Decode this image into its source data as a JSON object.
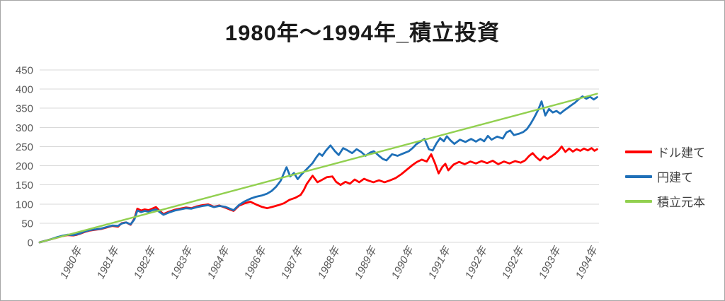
{
  "colors": {
    "background": "#ffffff",
    "border": "#a6a6a6",
    "grid": "#d9d9d9",
    "axis_text": "#595959",
    "title_text": "#1a1a1a",
    "legend_text": "#404040"
  },
  "chart_data": {
    "type": "line",
    "title": "1980年～1994年_積立投資",
    "xlabel": "",
    "ylabel": "",
    "xlim": [
      1980,
      1995
    ],
    "ylim": [
      0,
      450
    ],
    "grid": true,
    "legend_position": "right",
    "yticks": [
      0,
      50,
      100,
      150,
      200,
      250,
      300,
      350,
      400,
      450
    ],
    "xtick_labels": [
      "1980年",
      "1981年",
      "1982年",
      "1983年",
      "1984年",
      "1986年",
      "1987年",
      "1988年",
      "1989年",
      "1990年",
      "1991年",
      "1992年",
      "1992年",
      "1993年",
      "1994年"
    ],
    "series": [
      {
        "id": "usd",
        "name": "ドル建て",
        "color": "#ff0000",
        "line_width": 2.8,
        "points": [
          [
            1980.0,
            0
          ],
          [
            1980.15,
            4
          ],
          [
            1980.3,
            8
          ],
          [
            1980.45,
            12
          ],
          [
            1980.6,
            16
          ],
          [
            1980.75,
            19
          ],
          [
            1980.9,
            18
          ],
          [
            1981.0,
            20
          ],
          [
            1981.1,
            23
          ],
          [
            1981.2,
            27
          ],
          [
            1981.35,
            31
          ],
          [
            1981.5,
            33
          ],
          [
            1981.65,
            35
          ],
          [
            1981.8,
            39
          ],
          [
            1981.95,
            43
          ],
          [
            1982.1,
            41
          ],
          [
            1982.2,
            50
          ],
          [
            1982.32,
            52
          ],
          [
            1982.44,
            46
          ],
          [
            1982.54,
            62
          ],
          [
            1982.62,
            88
          ],
          [
            1982.72,
            83
          ],
          [
            1982.82,
            86
          ],
          [
            1982.92,
            84
          ],
          [
            1983.02,
            88
          ],
          [
            1983.12,
            92
          ],
          [
            1983.22,
            82
          ],
          [
            1983.32,
            74
          ],
          [
            1983.47,
            80
          ],
          [
            1983.62,
            85
          ],
          [
            1983.77,
            88
          ],
          [
            1983.92,
            91
          ],
          [
            1984.07,
            89
          ],
          [
            1984.22,
            94
          ],
          [
            1984.37,
            97
          ],
          [
            1984.52,
            99
          ],
          [
            1984.67,
            93
          ],
          [
            1984.82,
            96
          ],
          [
            1984.97,
            91
          ],
          [
            1985.1,
            86
          ],
          [
            1985.2,
            82
          ],
          [
            1985.35,
            96
          ],
          [
            1985.5,
            102
          ],
          [
            1985.65,
            106
          ],
          [
            1985.8,
            99
          ],
          [
            1985.95,
            93
          ],
          [
            1986.1,
            89
          ],
          [
            1986.25,
            93
          ],
          [
            1986.4,
            97
          ],
          [
            1986.55,
            102
          ],
          [
            1986.7,
            111
          ],
          [
            1986.85,
            116
          ],
          [
            1987.0,
            124
          ],
          [
            1987.08,
            136
          ],
          [
            1987.16,
            152
          ],
          [
            1987.24,
            163
          ],
          [
            1987.32,
            174
          ],
          [
            1987.45,
            157
          ],
          [
            1987.55,
            162
          ],
          [
            1987.7,
            170
          ],
          [
            1987.85,
            172
          ],
          [
            1987.95,
            158
          ],
          [
            1988.07,
            150
          ],
          [
            1988.2,
            158
          ],
          [
            1988.32,
            153
          ],
          [
            1988.45,
            164
          ],
          [
            1988.57,
            157
          ],
          [
            1988.7,
            166
          ],
          [
            1988.82,
            161
          ],
          [
            1988.95,
            157
          ],
          [
            1989.1,
            162
          ],
          [
            1989.25,
            157
          ],
          [
            1989.4,
            162
          ],
          [
            1989.55,
            168
          ],
          [
            1989.7,
            178
          ],
          [
            1989.85,
            190
          ],
          [
            1990.0,
            202
          ],
          [
            1990.12,
            210
          ],
          [
            1990.25,
            216
          ],
          [
            1990.38,
            211
          ],
          [
            1990.5,
            230
          ],
          [
            1990.6,
            207
          ],
          [
            1990.7,
            180
          ],
          [
            1990.8,
            197
          ],
          [
            1990.88,
            205
          ],
          [
            1990.96,
            188
          ],
          [
            1991.1,
            203
          ],
          [
            1991.25,
            210
          ],
          [
            1991.4,
            204
          ],
          [
            1991.55,
            211
          ],
          [
            1991.7,
            206
          ],
          [
            1991.85,
            212
          ],
          [
            1992.0,
            207
          ],
          [
            1992.15,
            213
          ],
          [
            1992.3,
            204
          ],
          [
            1992.45,
            211
          ],
          [
            1992.6,
            206
          ],
          [
            1992.75,
            212
          ],
          [
            1992.9,
            208
          ],
          [
            1993.02,
            214
          ],
          [
            1993.12,
            225
          ],
          [
            1993.22,
            233
          ],
          [
            1993.32,
            222
          ],
          [
            1993.42,
            214
          ],
          [
            1993.52,
            224
          ],
          [
            1993.62,
            218
          ],
          [
            1993.72,
            224
          ],
          [
            1993.82,
            231
          ],
          [
            1993.92,
            240
          ],
          [
            1994.0,
            250
          ],
          [
            1994.1,
            236
          ],
          [
            1994.2,
            245
          ],
          [
            1994.3,
            237
          ],
          [
            1994.4,
            243
          ],
          [
            1994.5,
            239
          ],
          [
            1994.6,
            245
          ],
          [
            1994.7,
            240
          ],
          [
            1994.8,
            246
          ],
          [
            1994.88,
            239
          ],
          [
            1994.95,
            243
          ]
        ]
      },
      {
        "id": "jpy",
        "name": "円建て",
        "color": "#1f70b8",
        "line_width": 2.8,
        "points": [
          [
            1980.0,
            0
          ],
          [
            1980.15,
            4
          ],
          [
            1980.3,
            8
          ],
          [
            1980.45,
            13
          ],
          [
            1980.6,
            17
          ],
          [
            1980.75,
            20
          ],
          [
            1980.9,
            19
          ],
          [
            1981.0,
            21
          ],
          [
            1981.1,
            24
          ],
          [
            1981.2,
            28
          ],
          [
            1981.35,
            32
          ],
          [
            1981.5,
            34
          ],
          [
            1981.65,
            36
          ],
          [
            1981.8,
            40
          ],
          [
            1981.95,
            44
          ],
          [
            1982.1,
            43
          ],
          [
            1982.2,
            49
          ],
          [
            1982.32,
            52
          ],
          [
            1982.44,
            47
          ],
          [
            1982.54,
            60
          ],
          [
            1982.62,
            83
          ],
          [
            1982.72,
            79
          ],
          [
            1982.82,
            82
          ],
          [
            1982.92,
            80
          ],
          [
            1983.02,
            84
          ],
          [
            1983.12,
            86
          ],
          [
            1983.22,
            79
          ],
          [
            1983.32,
            72
          ],
          [
            1983.47,
            78
          ],
          [
            1983.62,
            83
          ],
          [
            1983.77,
            86
          ],
          [
            1983.92,
            89
          ],
          [
            1984.07,
            88
          ],
          [
            1984.22,
            92
          ],
          [
            1984.37,
            95
          ],
          [
            1984.52,
            97
          ],
          [
            1984.67,
            92
          ],
          [
            1984.82,
            95
          ],
          [
            1984.97,
            93
          ],
          [
            1985.1,
            88
          ],
          [
            1985.2,
            84
          ],
          [
            1985.35,
            98
          ],
          [
            1985.5,
            107
          ],
          [
            1985.65,
            114
          ],
          [
            1985.8,
            119
          ],
          [
            1985.95,
            122
          ],
          [
            1986.1,
            127
          ],
          [
            1986.22,
            134
          ],
          [
            1986.34,
            145
          ],
          [
            1986.46,
            160
          ],
          [
            1986.54,
            178
          ],
          [
            1986.62,
            196
          ],
          [
            1986.72,
            172
          ],
          [
            1986.82,
            181
          ],
          [
            1986.92,
            165
          ],
          [
            1987.02,
            177
          ],
          [
            1987.12,
            187
          ],
          [
            1987.22,
            197
          ],
          [
            1987.32,
            207
          ],
          [
            1987.42,
            222
          ],
          [
            1987.5,
            232
          ],
          [
            1987.58,
            226
          ],
          [
            1987.68,
            240
          ],
          [
            1987.8,
            253
          ],
          [
            1987.92,
            238
          ],
          [
            1988.02,
            228
          ],
          [
            1988.14,
            246
          ],
          [
            1988.26,
            240
          ],
          [
            1988.38,
            233
          ],
          [
            1988.5,
            243
          ],
          [
            1988.62,
            236
          ],
          [
            1988.74,
            226
          ],
          [
            1988.86,
            234
          ],
          [
            1988.96,
            238
          ],
          [
            1989.1,
            226
          ],
          [
            1989.2,
            218
          ],
          [
            1989.3,
            214
          ],
          [
            1989.45,
            230
          ],
          [
            1989.6,
            226
          ],
          [
            1989.75,
            232
          ],
          [
            1989.9,
            238
          ],
          [
            1990.0,
            246
          ],
          [
            1990.1,
            256
          ],
          [
            1990.22,
            264
          ],
          [
            1990.32,
            270
          ],
          [
            1990.44,
            243
          ],
          [
            1990.54,
            240
          ],
          [
            1990.64,
            258
          ],
          [
            1990.74,
            272
          ],
          [
            1990.84,
            264
          ],
          [
            1990.92,
            277
          ],
          [
            1991.02,
            266
          ],
          [
            1991.12,
            257
          ],
          [
            1991.27,
            268
          ],
          [
            1991.42,
            262
          ],
          [
            1991.57,
            270
          ],
          [
            1991.7,
            263
          ],
          [
            1991.82,
            270
          ],
          [
            1991.92,
            264
          ],
          [
            1992.02,
            278
          ],
          [
            1992.12,
            268
          ],
          [
            1992.27,
            276
          ],
          [
            1992.42,
            271
          ],
          [
            1992.52,
            287
          ],
          [
            1992.62,
            292
          ],
          [
            1992.72,
            280
          ],
          [
            1992.87,
            284
          ],
          [
            1992.97,
            288
          ],
          [
            1993.07,
            296
          ],
          [
            1993.17,
            310
          ],
          [
            1993.27,
            327
          ],
          [
            1993.37,
            346
          ],
          [
            1993.46,
            368
          ],
          [
            1993.56,
            331
          ],
          [
            1993.66,
            348
          ],
          [
            1993.76,
            339
          ],
          [
            1993.86,
            343
          ],
          [
            1993.96,
            336
          ],
          [
            1994.06,
            344
          ],
          [
            1994.16,
            351
          ],
          [
            1994.26,
            358
          ],
          [
            1994.36,
            365
          ],
          [
            1994.46,
            374
          ],
          [
            1994.56,
            381
          ],
          [
            1994.66,
            375
          ],
          [
            1994.76,
            380
          ],
          [
            1994.86,
            373
          ],
          [
            1994.95,
            379
          ]
        ]
      },
      {
        "id": "principal",
        "name": "積立元本",
        "color": "#92d050",
        "line_width": 2.4,
        "points": [
          [
            1980.0,
            0
          ],
          [
            1994.95,
            388
          ]
        ]
      }
    ]
  }
}
